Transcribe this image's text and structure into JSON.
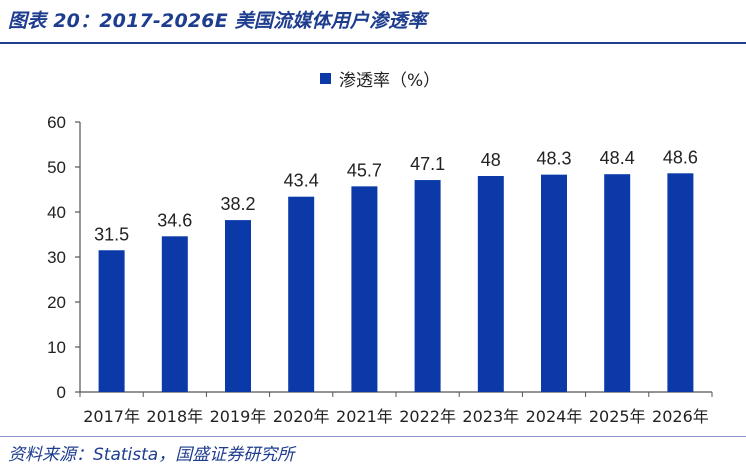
{
  "figure": {
    "title": "图表 20：2017-2026E 美国流媒体用户渗透率",
    "source": "资料来源：Statista，国盛证券研究所"
  },
  "chart_data": {
    "type": "bar",
    "categories": [
      "2017年",
      "2018年",
      "2019年",
      "2020年",
      "2021年",
      "2022年",
      "2023年",
      "2024年",
      "2025年",
      "2026年"
    ],
    "series": [
      {
        "name": "渗透率（%）",
        "values": [
          31.5,
          34.6,
          38.2,
          43.4,
          45.7,
          47.1,
          48,
          48.3,
          48.4,
          48.6
        ]
      }
    ],
    "data_labels": [
      "31.5",
      "34.6",
      "38.2",
      "43.4",
      "45.7",
      "47.1",
      "48",
      "48.3",
      "48.4",
      "48.6"
    ],
    "ylim": [
      0,
      60
    ],
    "yticks": [
      0,
      10,
      20,
      30,
      40,
      50,
      60
    ],
    "grid": false,
    "legend_position": "top-center",
    "bar_color": "#0b3aa8"
  }
}
